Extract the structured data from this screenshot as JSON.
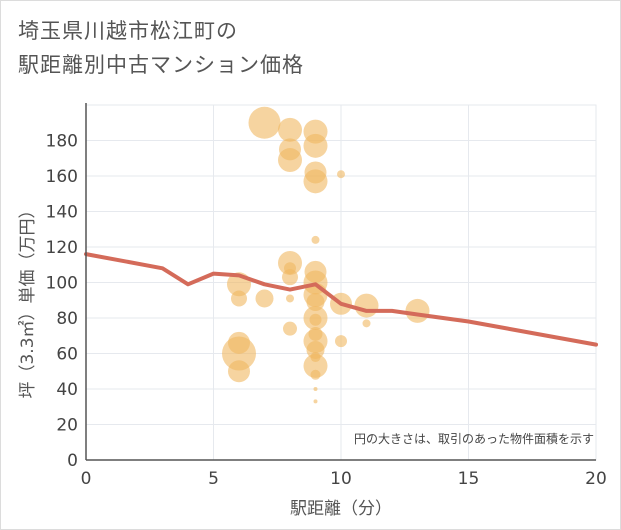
{
  "chart_title": {
    "line1": "埼玉県川越市松江町の",
    "line2": "駅距離別中古マンション価格"
  },
  "chart_data": {
    "type": "scatter",
    "title": "埼玉県川越市松江町の駅距離別中古マンション価格",
    "xlabel": "駅距離（分）",
    "ylabel": "坪（3.3㎡）単価（万円）",
    "xlim": [
      0,
      20
    ],
    "ylim": [
      0,
      200
    ],
    "x_ticks": [
      0,
      5,
      10,
      15,
      20
    ],
    "y_ticks": [
      0,
      20,
      40,
      60,
      80,
      100,
      120,
      140,
      160,
      180
    ],
    "grid": true,
    "note": "円の大きさは、取引のあった物件面積を示す",
    "colors": {
      "bubble": "#f0b860",
      "trend": "#d46b5a",
      "grid": "#e6e9ee",
      "axis": "#555555"
    },
    "bubble_series": {
      "points": [
        {
          "x": 6,
          "y": 99,
          "size": 12
        },
        {
          "x": 6,
          "y": 91,
          "size": 8
        },
        {
          "x": 6,
          "y": 66,
          "size": 11
        },
        {
          "x": 6,
          "y": 60,
          "size": 17
        },
        {
          "x": 6,
          "y": 50,
          "size": 11
        },
        {
          "x": 7,
          "y": 190,
          "size": 16
        },
        {
          "x": 7,
          "y": 91,
          "size": 9
        },
        {
          "x": 8,
          "y": 186,
          "size": 12
        },
        {
          "x": 8,
          "y": 175,
          "size": 11
        },
        {
          "x": 8,
          "y": 169,
          "size": 12
        },
        {
          "x": 8,
          "y": 111,
          "size": 12
        },
        {
          "x": 8,
          "y": 108,
          "size": 6
        },
        {
          "x": 8,
          "y": 103,
          "size": 8
        },
        {
          "x": 8,
          "y": 91,
          "size": 4
        },
        {
          "x": 8,
          "y": 74,
          "size": 7
        },
        {
          "x": 9,
          "y": 185,
          "size": 12
        },
        {
          "x": 9,
          "y": 177,
          "size": 12
        },
        {
          "x": 9,
          "y": 162,
          "size": 11
        },
        {
          "x": 9,
          "y": 157,
          "size": 12
        },
        {
          "x": 9,
          "y": 124,
          "size": 4
        },
        {
          "x": 9,
          "y": 106,
          "size": 11
        },
        {
          "x": 9,
          "y": 100,
          "size": 12
        },
        {
          "x": 9,
          "y": 93,
          "size": 12
        },
        {
          "x": 9,
          "y": 89,
          "size": 9
        },
        {
          "x": 9,
          "y": 80,
          "size": 12
        },
        {
          "x": 9,
          "y": 79,
          "size": 6
        },
        {
          "x": 9,
          "y": 71,
          "size": 7
        },
        {
          "x": 9,
          "y": 67,
          "size": 12
        },
        {
          "x": 9,
          "y": 62,
          "size": 9
        },
        {
          "x": 9,
          "y": 58,
          "size": 5
        },
        {
          "x": 9,
          "y": 53,
          "size": 12
        },
        {
          "x": 9,
          "y": 48,
          "size": 5
        },
        {
          "x": 9,
          "y": 40,
          "size": 2
        },
        {
          "x": 9,
          "y": 33,
          "size": 2
        },
        {
          "x": 10,
          "y": 161,
          "size": 4
        },
        {
          "x": 10,
          "y": 88,
          "size": 11
        },
        {
          "x": 10,
          "y": 67,
          "size": 6
        },
        {
          "x": 11,
          "y": 87,
          "size": 12
        },
        {
          "x": 11,
          "y": 77,
          "size": 4
        },
        {
          "x": 13,
          "y": 84,
          "size": 12
        }
      ]
    },
    "trend_series": {
      "points": [
        {
          "x": 0,
          "y": 116
        },
        {
          "x": 3,
          "y": 108
        },
        {
          "x": 4,
          "y": 99
        },
        {
          "x": 5,
          "y": 105
        },
        {
          "x": 6,
          "y": 104
        },
        {
          "x": 7,
          "y": 99
        },
        {
          "x": 8,
          "y": 96
        },
        {
          "x": 9,
          "y": 99
        },
        {
          "x": 10,
          "y": 88
        },
        {
          "x": 11,
          "y": 84
        },
        {
          "x": 12,
          "y": 84
        },
        {
          "x": 13,
          "y": 82
        },
        {
          "x": 15,
          "y": 78
        },
        {
          "x": 20,
          "y": 65
        }
      ]
    }
  }
}
